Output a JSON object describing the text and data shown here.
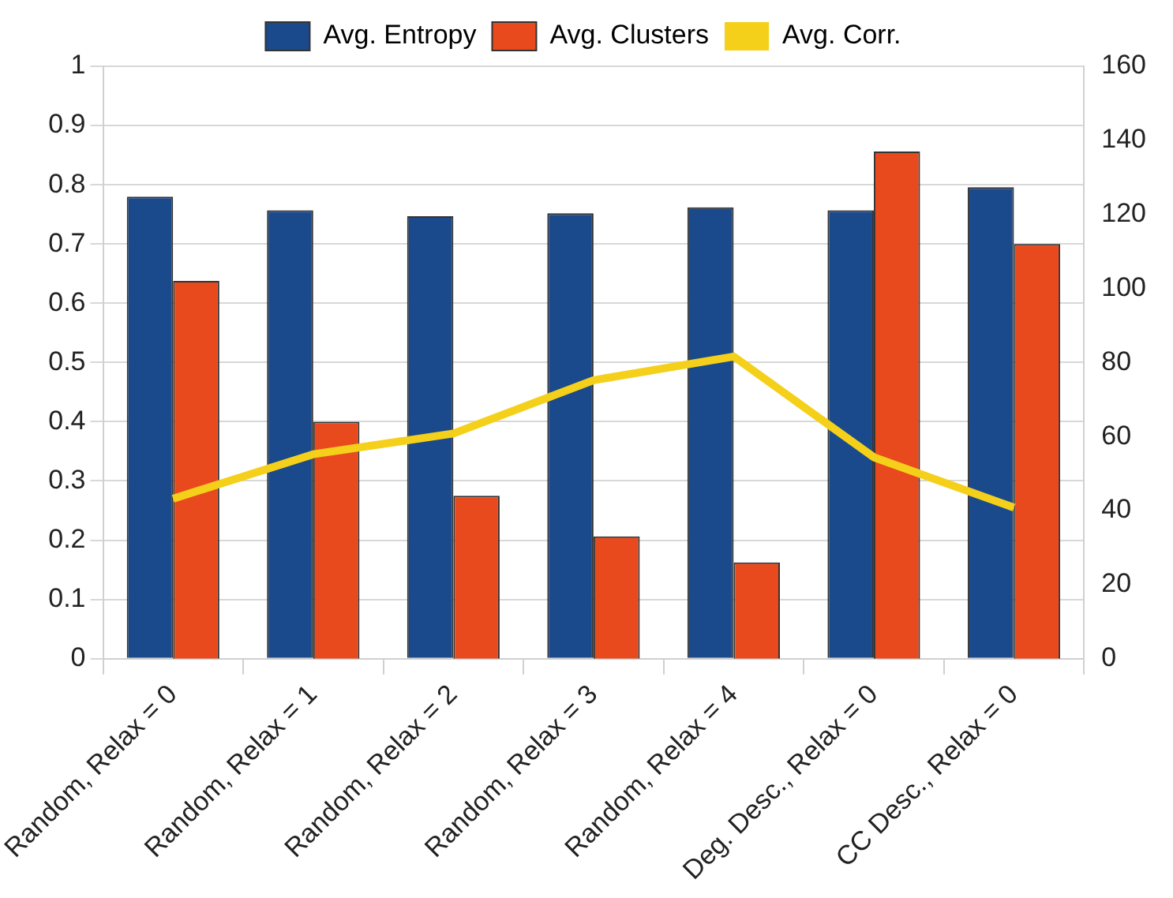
{
  "chart_data": {
    "type": "bar",
    "categories": [
      "Random, Relax = 0",
      "Random, Relax = 1",
      "Random, Relax = 2",
      "Random, Relax = 3",
      "Random, Relax = 4",
      "Deg. Desc., Relax = 0",
      "CC Desc., Relax = 0"
    ],
    "series": [
      {
        "name": "Avg. Entropy",
        "color": "#1a4a8c",
        "values": [
          0.78,
          0.757,
          0.747,
          0.752,
          0.762,
          0.757,
          0.796
        ]
      },
      {
        "name": "Avg. Clusters",
        "color": "#e84a1e",
        "axis": "y2",
        "values": [
          102,
          64,
          44,
          33,
          26,
          137,
          112
        ]
      },
      {
        "name": "Avg. Corr.",
        "type": "line",
        "color": "#f5d01a",
        "values": [
          0.27,
          0.345,
          0.38,
          0.47,
          0.51,
          0.34,
          0.255
        ]
      }
    ],
    "ylim": [
      0,
      1
    ],
    "yticks": [
      0,
      0.1,
      0.2,
      0.3,
      0.4,
      0.5,
      0.6,
      0.7,
      0.8,
      0.9,
      1
    ],
    "y2lim": [
      0,
      160
    ],
    "y2ticks": [
      0,
      20,
      40,
      60,
      80,
      100,
      120,
      140,
      160
    ],
    "grid": "y",
    "legend": "top",
    "marker": "none"
  }
}
